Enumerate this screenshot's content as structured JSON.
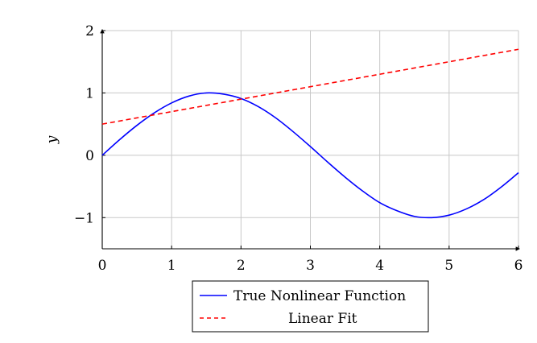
{
  "chart_data": {
    "type": "line",
    "title": "",
    "xlabel": "",
    "ylabel": "y",
    "xlim": [
      0,
      6
    ],
    "ylim": [
      -1.5,
      2
    ],
    "xticks": [
      0,
      1,
      2,
      3,
      4,
      5,
      6
    ],
    "yticks": [
      -1,
      0,
      1,
      2
    ],
    "xtick_labels": [
      "0",
      "1",
      "2",
      "3",
      "4",
      "5",
      "6"
    ],
    "ytick_labels": [
      "−1",
      "0",
      "1",
      "2"
    ],
    "grid": true,
    "legend_position": "bottom-center",
    "series": [
      {
        "name": "True Nonlinear Function",
        "color": "#0000ff",
        "style": "solid",
        "x": [
          0,
          0.25,
          0.5,
          0.75,
          1,
          1.25,
          1.5,
          1.75,
          2,
          2.25,
          2.5,
          2.75,
          3,
          3.25,
          3.5,
          3.75,
          4,
          4.25,
          4.5,
          4.75,
          5,
          5.25,
          5.5,
          5.75,
          6
        ],
        "y": [
          0,
          0.25,
          0.48,
          0.68,
          0.84,
          0.95,
          1.0,
          0.98,
          0.91,
          0.78,
          0.6,
          0.38,
          0.14,
          -0.11,
          -0.35,
          -0.57,
          -0.76,
          -0.89,
          -0.98,
          -1.0,
          -0.96,
          -0.86,
          -0.71,
          -0.51,
          -0.28
        ]
      },
      {
        "name": "Linear Fit",
        "color": "#ff0000",
        "style": "dashed",
        "x": [
          0,
          6
        ],
        "y": [
          0.5,
          1.7
        ]
      }
    ]
  }
}
